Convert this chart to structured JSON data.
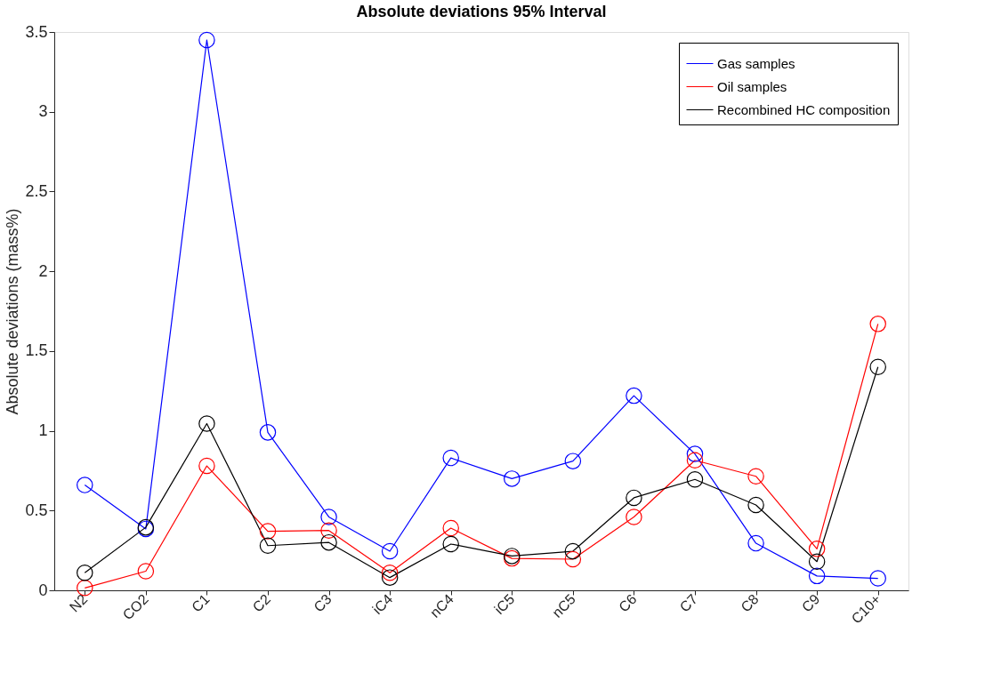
{
  "chart_data": {
    "type": "line",
    "title": "Absolute deviations 95% Interval",
    "ylabel": "Absolute deviations (mass%)",
    "categories": [
      "N2",
      "CO2",
      "C1",
      "C2",
      "C3",
      "iC4",
      "nC4",
      "iC5",
      "nC5",
      "C6",
      "C7",
      "C8",
      "C9",
      "C10+"
    ],
    "series": [
      {
        "name": "Gas samples",
        "color": "#0000ff",
        "values": [
          0.66,
          0.385,
          3.45,
          0.99,
          0.46,
          0.245,
          0.83,
          0.7,
          0.81,
          1.22,
          0.855,
          0.295,
          0.09,
          0.075
        ]
      },
      {
        "name": "Oil samples",
        "color": "#ff0000",
        "values": [
          0.015,
          0.12,
          0.78,
          0.37,
          0.375,
          0.11,
          0.39,
          0.2,
          0.195,
          0.46,
          0.815,
          0.715,
          0.26,
          1.67
        ]
      },
      {
        "name": "Recombined HC composition",
        "color": "#000000",
        "values": [
          0.11,
          0.395,
          1.045,
          0.28,
          0.3,
          0.08,
          0.29,
          0.215,
          0.245,
          0.58,
          0.695,
          0.535,
          0.18,
          1.4
        ]
      }
    ],
    "ylim": [
      0,
      3.5
    ],
    "yticks": [
      0,
      0.5,
      1,
      1.5,
      2,
      2.5,
      3,
      3.5
    ],
    "grid": false,
    "legend": "top right",
    "marker": "circle",
    "line_style": "solid"
  }
}
